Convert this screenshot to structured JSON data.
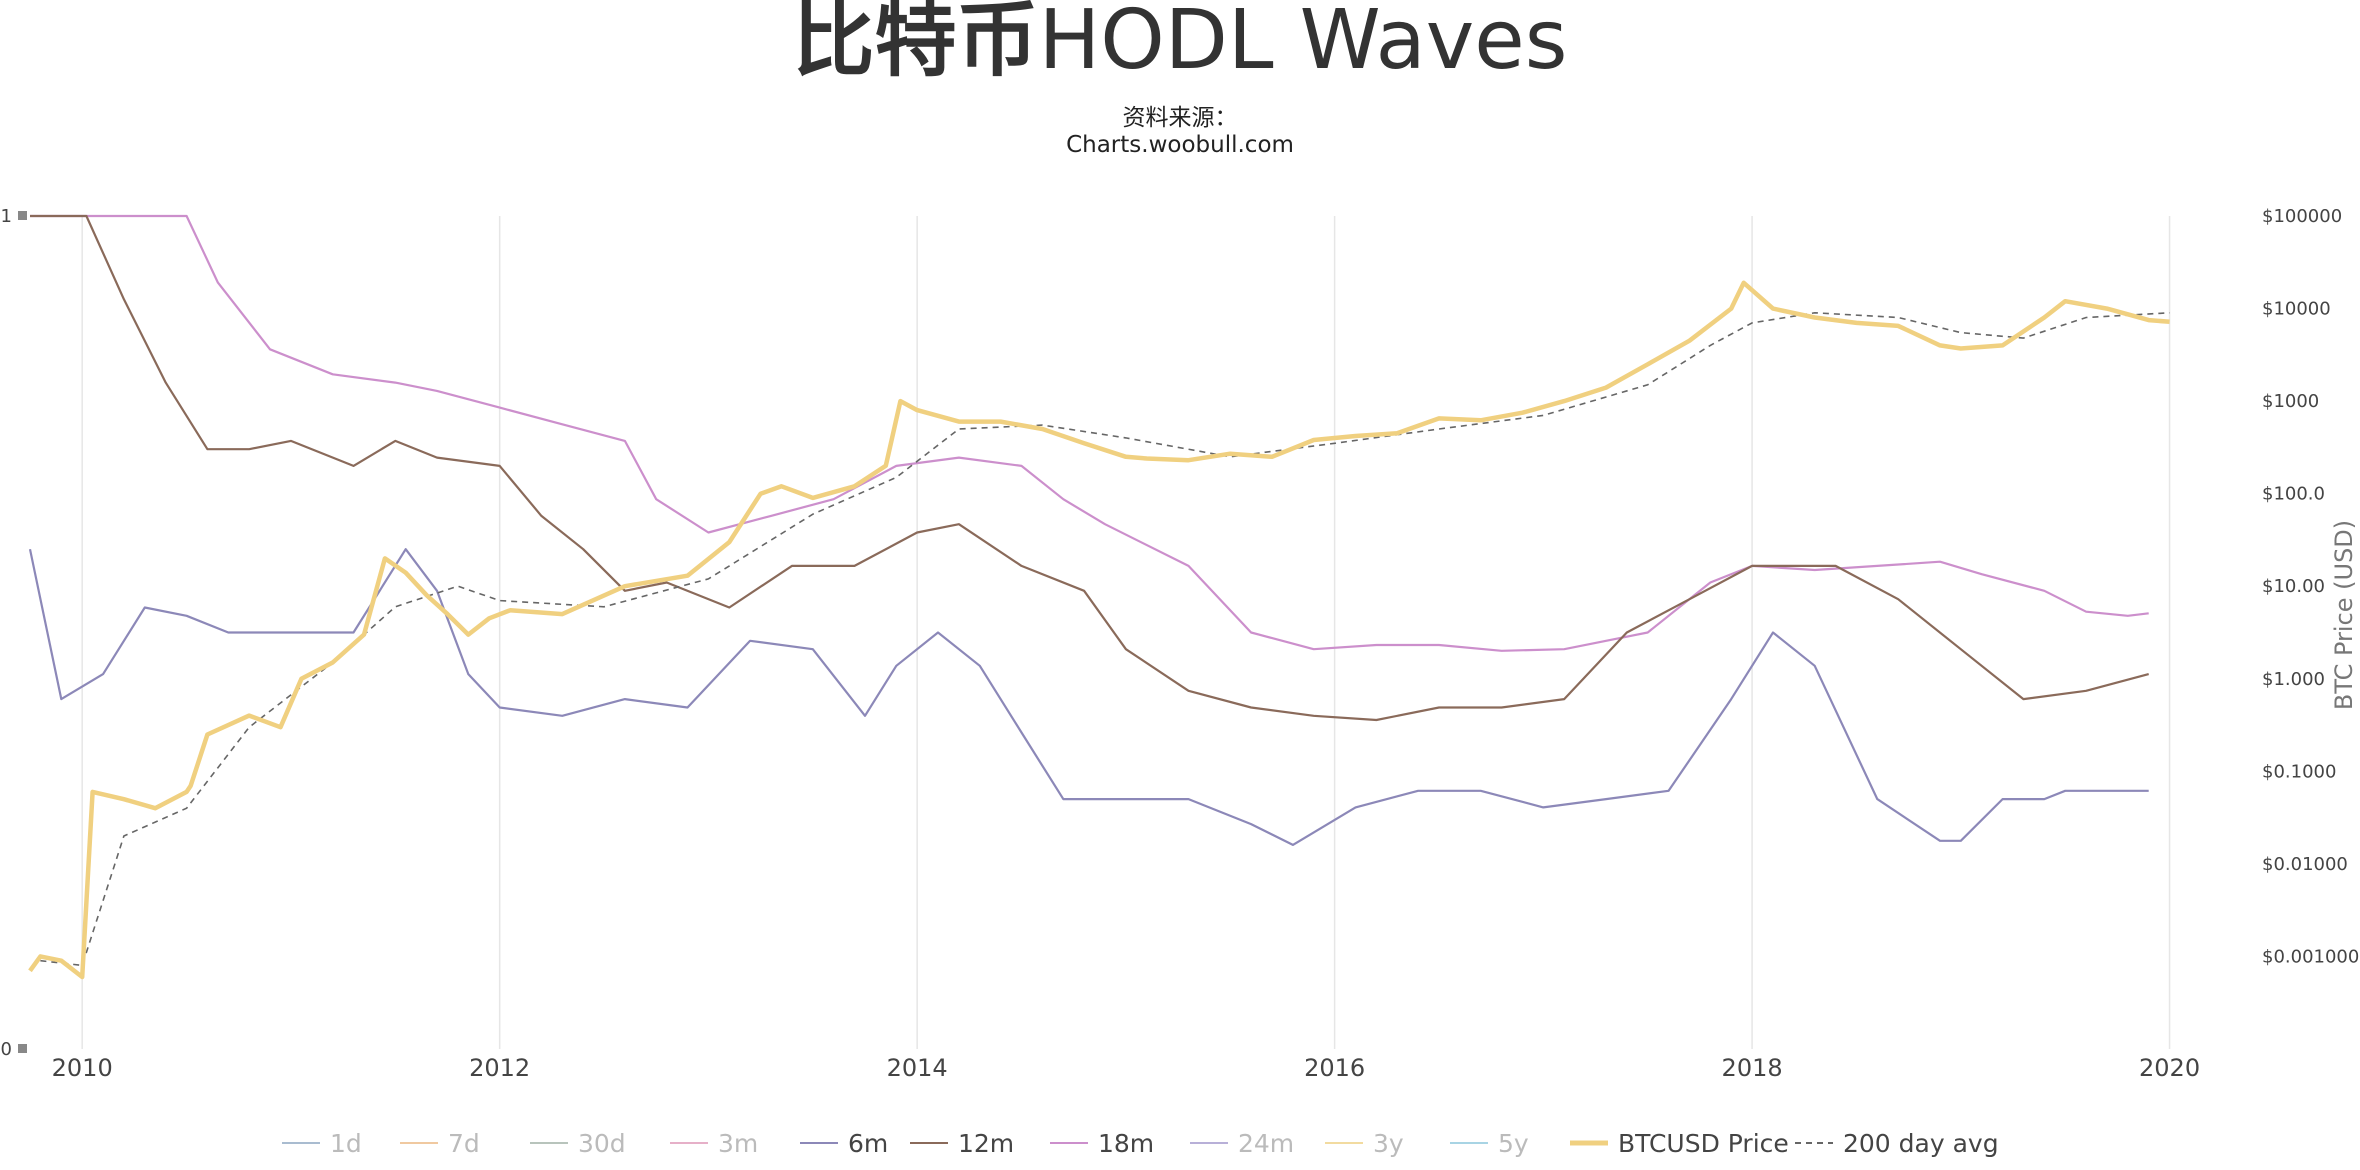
{
  "title_bold": "比特币",
  "title_rest": "HODL Waves",
  "subtitle_line1": "资料来源：",
  "subtitle_line2": "Charts.woobull.com",
  "chart_data": {
    "type": "line",
    "x_ticks": [
      "2010",
      "2012",
      "2014",
      "2016",
      "2018",
      "2020"
    ],
    "xlim": [
      2009.75,
      2020.05
    ],
    "left_axis": {
      "ticks": [
        "1",
        "0"
      ],
      "ylim": [
        0,
        1
      ]
    },
    "right_axis": {
      "label": "BTC Price (USD)",
      "scale": "log",
      "ylim": [
        0.0001,
        100000
      ],
      "ticks": [
        "$100000",
        "$10000",
        "$1000",
        "$100.0",
        "$10.00",
        "$1.000",
        "$0.1000",
        "$0.01000",
        "$0.001000"
      ]
    },
    "grid": "vertical",
    "legend_position": "bottom",
    "legend": [
      {
        "name": "1d",
        "color": "#a9bcd0",
        "dash": false,
        "faded": true
      },
      {
        "name": "7d",
        "color": "#f0c9a0",
        "dash": false,
        "faded": true
      },
      {
        "name": "30d",
        "color": "#b8c4bc",
        "dash": false,
        "faded": true
      },
      {
        "name": "3m",
        "color": "#e6b0c8",
        "dash": false,
        "faded": true
      },
      {
        "name": "6m",
        "color": "#8c88b8",
        "dash": false,
        "faded": false
      },
      {
        "name": "12m",
        "color": "#8a6a5a",
        "dash": false,
        "faded": false
      },
      {
        "name": "18m",
        "color": "#cc8fcc",
        "dash": false,
        "faded": false
      },
      {
        "name": "24m",
        "color": "#b8b0d8",
        "dash": false,
        "faded": true
      },
      {
        "name": "3y",
        "color": "#f2dba0",
        "dash": false,
        "faded": true
      },
      {
        "name": "5y",
        "color": "#a8d4e4",
        "dash": false,
        "faded": true
      },
      {
        "name": "BTCUSD Price",
        "color": "#f0d080",
        "dash": false,
        "faded": false
      },
      {
        "name": "200 day avg",
        "color": "#666666",
        "dash": true,
        "faded": false
      }
    ],
    "series_price": {
      "name": "BTCUSD Price",
      "x": [
        2009.75,
        2009.8,
        2009.9,
        2010.0,
        2010.05,
        2010.2,
        2010.35,
        2010.5,
        2010.52,
        2010.6,
        2010.8,
        2010.95,
        2011.05,
        2011.2,
        2011.35,
        2011.45,
        2011.55,
        2011.65,
        2011.75,
        2011.85,
        2011.95,
        2012.05,
        2012.3,
        2012.6,
        2012.9,
        2013.1,
        2013.25,
        2013.35,
        2013.5,
        2013.7,
        2013.85,
        2013.92,
        2014.0,
        2014.2,
        2014.4,
        2014.6,
        2014.8,
        2015.0,
        2015.1,
        2015.3,
        2015.5,
        2015.7,
        2015.9,
        2016.1,
        2016.3,
        2016.5,
        2016.7,
        2016.9,
        2017.1,
        2017.3,
        2017.5,
        2017.7,
        2017.9,
        2017.96,
        2018.1,
        2018.3,
        2018.5,
        2018.7,
        2018.9,
        2019.0,
        2019.2,
        2019.4,
        2019.5,
        2019.7,
        2019.9,
        2020.0
      ],
      "y": [
        0.0007,
        0.001,
        0.0009,
        0.0006,
        0.06,
        0.05,
        0.04,
        0.06,
        0.07,
        0.25,
        0.4,
        0.3,
        1.0,
        1.5,
        3.0,
        20.0,
        14.0,
        8.0,
        5.0,
        3.0,
        4.5,
        5.5,
        5.0,
        10.0,
        13.0,
        30.0,
        100.0,
        120.0,
        90.0,
        120.0,
        200.0,
        1000.0,
        800.0,
        600.0,
        600.0,
        500.0,
        350.0,
        250.0,
        240.0,
        230.0,
        270.0,
        250.0,
        380.0,
        420.0,
        450.0,
        650.0,
        620.0,
        750.0,
        1000.0,
        1400.0,
        2500.0,
        4500.0,
        10000.0,
        19000.0,
        10000.0,
        8000.0,
        7000.0,
        6500.0,
        4000.0,
        3700.0,
        4000.0,
        8000.0,
        12000.0,
        10000.0,
        7500.0,
        7200.0
      ]
    },
    "series_200dma": {
      "name": "200 day avg",
      "x": [
        2009.8,
        2010.0,
        2010.2,
        2010.5,
        2010.8,
        2011.2,
        2011.5,
        2011.8,
        2012.0,
        2012.5,
        2013.0,
        2013.5,
        2013.9,
        2014.2,
        2014.6,
        2015.0,
        2015.5,
        2016.0,
        2016.5,
        2017.0,
        2017.5,
        2017.8,
        2018.0,
        2018.3,
        2018.7,
        2019.0,
        2019.3,
        2019.6,
        2020.0
      ],
      "y": [
        0.0009,
        0.0008,
        0.02,
        0.04,
        0.3,
        1.5,
        6.0,
        10.0,
        7.0,
        6.0,
        12.0,
        60.0,
        150.0,
        500.0,
        550.0,
        400.0,
        250.0,
        350.0,
        500.0,
        700.0,
        1500.0,
        4000.0,
        7000.0,
        9000.0,
        8000.0,
        5500.0,
        4800.0,
        8000.0,
        9000.0
      ]
    },
    "series_hodl": [
      {
        "name": "18m",
        "x": [
          2009.75,
          2010.5,
          2010.65,
          2010.9,
          2011.2,
          2011.5,
          2011.7,
          2012.0,
          2012.3,
          2012.6,
          2012.75,
          2013.0,
          2013.3,
          2013.6,
          2013.9,
          2014.2,
          2014.5,
          2014.7,
          2014.9,
          2015.3,
          2015.6,
          2015.9,
          2016.2,
          2016.5,
          2016.8,
          2017.1,
          2017.5,
          2017.8,
          2018.0,
          2018.3,
          2018.6,
          2018.9,
          2019.1,
          2019.4,
          2019.6,
          2019.8,
          2019.9
        ],
        "y": [
          1.0,
          1.0,
          0.92,
          0.84,
          0.81,
          0.8,
          0.79,
          0.77,
          0.75,
          0.73,
          0.66,
          0.62,
          0.64,
          0.66,
          0.7,
          0.71,
          0.7,
          0.66,
          0.63,
          0.58,
          0.5,
          0.48,
          0.485,
          0.485,
          0.478,
          0.48,
          0.5,
          0.56,
          0.58,
          0.575,
          0.58,
          0.585,
          0.57,
          0.55,
          0.525,
          0.52,
          0.523
        ]
      },
      {
        "name": "12m",
        "x": [
          2009.75,
          2010.02,
          2010.2,
          2010.4,
          2010.6,
          2010.8,
          2011.0,
          2011.3,
          2011.5,
          2011.7,
          2012.0,
          2012.2,
          2012.4,
          2012.6,
          2012.8,
          2013.1,
          2013.4,
          2013.7,
          2014.0,
          2014.2,
          2014.5,
          2014.8,
          2015.0,
          2015.3,
          2015.6,
          2015.9,
          2016.2,
          2016.5,
          2016.8,
          2017.1,
          2017.4,
          2017.7,
          2018.0,
          2018.4,
          2018.7,
          2019.0,
          2019.3,
          2019.6,
          2019.9
        ],
        "y": [
          1.0,
          1.0,
          0.9,
          0.8,
          0.72,
          0.72,
          0.73,
          0.7,
          0.73,
          0.71,
          0.7,
          0.64,
          0.6,
          0.55,
          0.56,
          0.53,
          0.58,
          0.58,
          0.62,
          0.63,
          0.58,
          0.55,
          0.48,
          0.43,
          0.41,
          0.4,
          0.395,
          0.41,
          0.41,
          0.42,
          0.5,
          0.54,
          0.58,
          0.58,
          0.54,
          0.48,
          0.42,
          0.43,
          0.45
        ]
      },
      {
        "name": "6m",
        "x": [
          2009.75,
          2009.9,
          2010.1,
          2010.3,
          2010.5,
          2010.7,
          2011.0,
          2011.3,
          2011.55,
          2011.7,
          2011.85,
          2012.0,
          2012.3,
          2012.6,
          2012.9,
          2013.2,
          2013.5,
          2013.75,
          2013.9,
          2014.1,
          2014.3,
          2014.5,
          2014.7,
          2015.0,
          2015.3,
          2015.6,
          2015.8,
          2016.1,
          2016.4,
          2016.7,
          2017.0,
          2017.3,
          2017.6,
          2017.9,
          2018.1,
          2018.3,
          2018.6,
          2018.9,
          2019.0,
          2019.2,
          2019.4,
          2019.5,
          2019.7,
          2019.9
        ],
        "y": [
          0.6,
          0.42,
          0.45,
          0.53,
          0.52,
          0.5,
          0.5,
          0.5,
          0.6,
          0.55,
          0.45,
          0.41,
          0.4,
          0.42,
          0.41,
          0.49,
          0.48,
          0.4,
          0.46,
          0.5,
          0.46,
          0.38,
          0.3,
          0.3,
          0.3,
          0.27,
          0.245,
          0.29,
          0.31,
          0.31,
          0.29,
          0.3,
          0.31,
          0.42,
          0.5,
          0.46,
          0.3,
          0.25,
          0.25,
          0.3,
          0.3,
          0.31,
          0.31,
          0.31
        ]
      }
    ]
  }
}
